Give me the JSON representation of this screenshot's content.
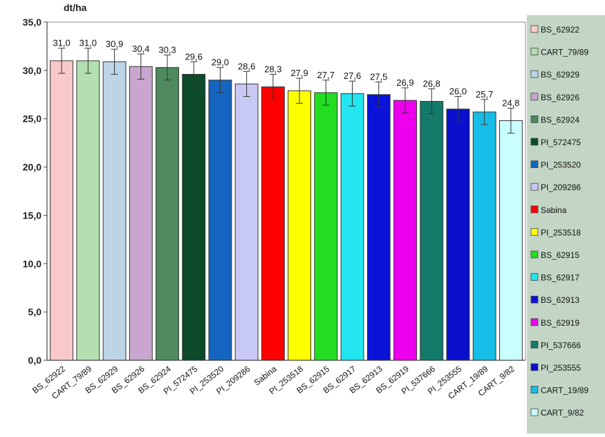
{
  "chart_data": {
    "type": "bar",
    "ylabel": "dt/ha",
    "ylim": [
      0,
      35
    ],
    "yticks": [
      "0,0",
      "5,0",
      "10,0",
      "15,0",
      "20,0",
      "25,0",
      "30,0",
      "35,0"
    ],
    "error_bars": true,
    "legend_position": "right",
    "categories": [
      "BS_62922",
      "CART_79/89",
      "BS_62929",
      "BS_62926",
      "BS_62924",
      "PI_572475",
      "PI_253520",
      "PI_209286",
      "Sabina",
      "PI_253518",
      "BS_62915",
      "BS_62917",
      "BS_62913",
      "BS_62919",
      "PI_537666",
      "PI_253555",
      "CART_19/89",
      "CART_9/82"
    ],
    "values": [
      31.0,
      31.0,
      30.9,
      30.4,
      30.3,
      29.6,
      29.0,
      28.6,
      28.3,
      27.9,
      27.7,
      27.6,
      27.5,
      26.9,
      26.8,
      26.0,
      25.7,
      24.8
    ],
    "value_labels": [
      "31,0",
      "31,0",
      "30,9",
      "30,4",
      "30,3",
      "29,6",
      "29,0",
      "28,6",
      "28,3",
      "27,9",
      "27,7",
      "27,6",
      "27,5",
      "26,9",
      "26,8",
      "26,0",
      "25,7",
      "24,8"
    ],
    "error": 1.3,
    "colors": [
      "#f9c9c9",
      "#b3dfb3",
      "#bcd4e6",
      "#c9a6cf",
      "#4e8a5e",
      "#0c4a2a",
      "#1565c0",
      "#c9c9f5",
      "#ff0000",
      "#ffff00",
      "#22dd22",
      "#22e5ef",
      "#0a14d8",
      "#ee00ee",
      "#137a6a",
      "#0a10cc",
      "#16bde6",
      "#c9ffff"
    ]
  }
}
